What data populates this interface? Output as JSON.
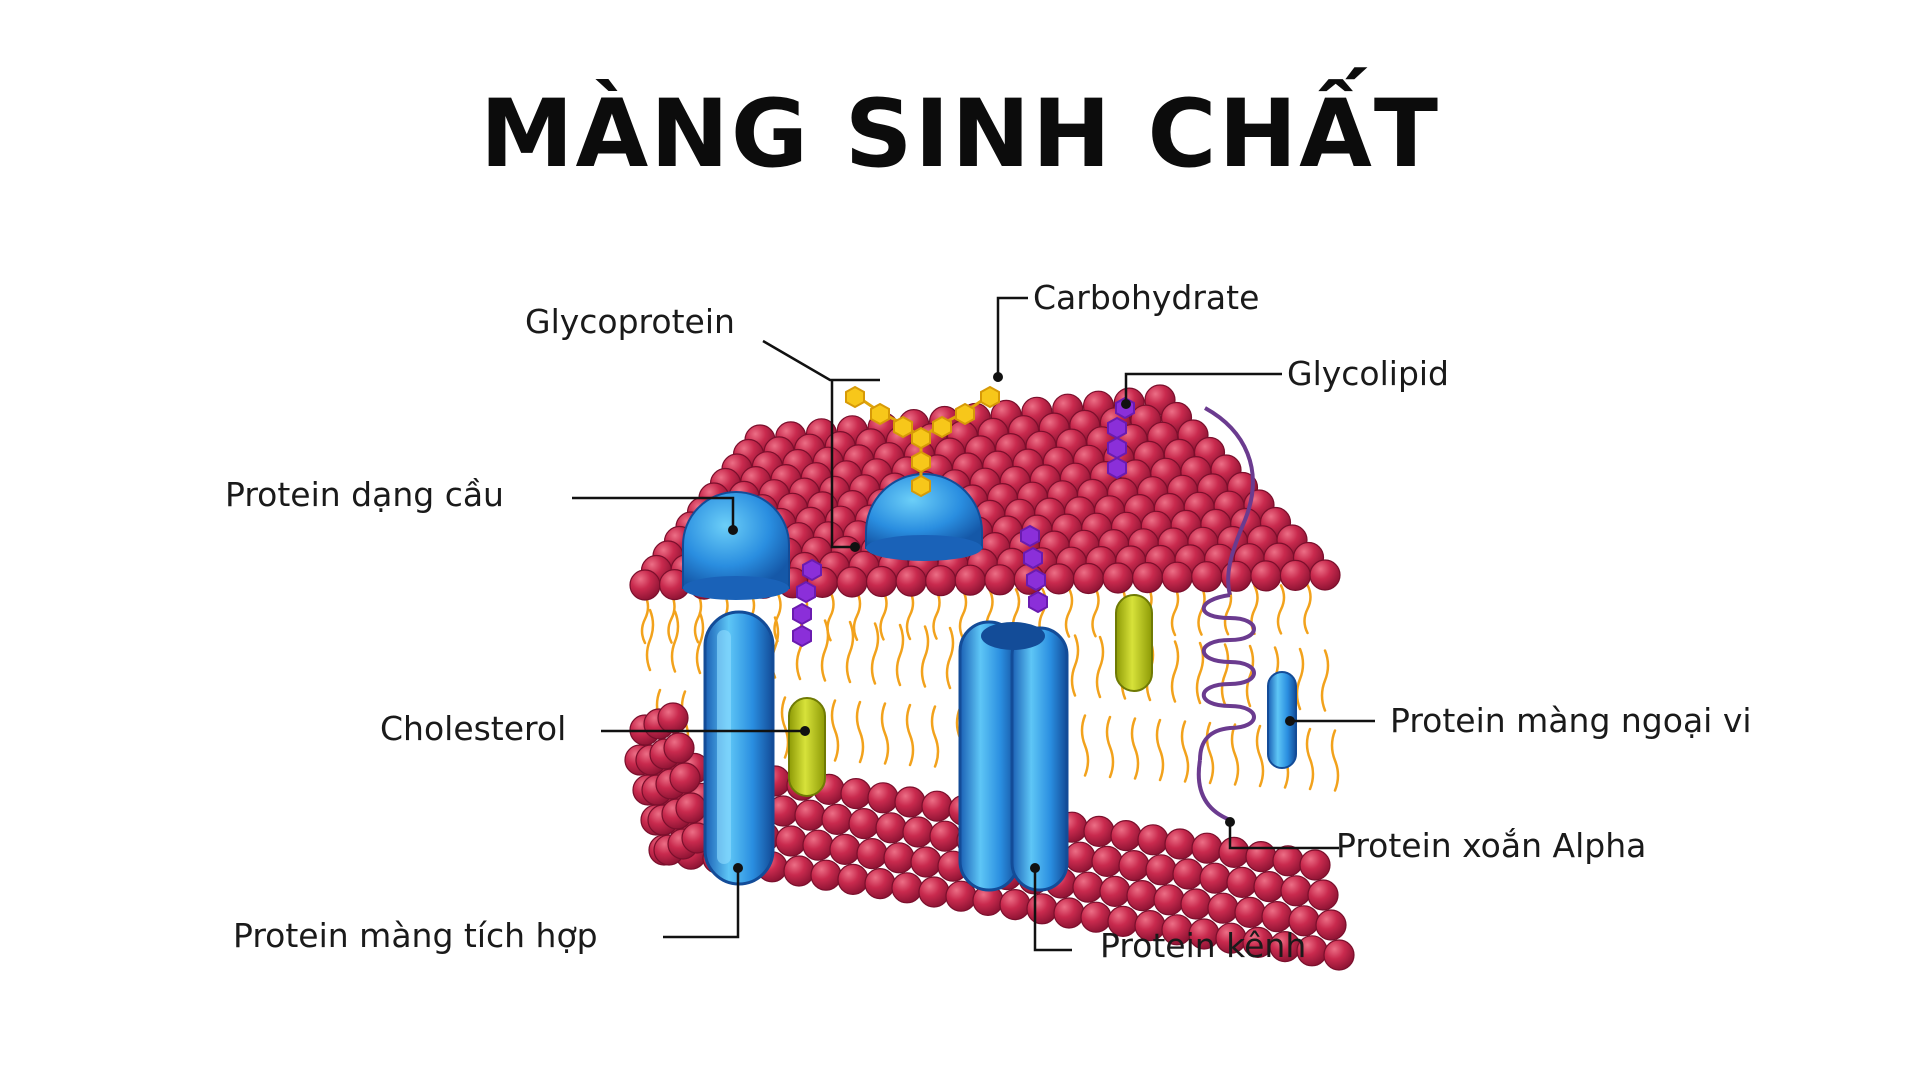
{
  "title": "MÀNG SINH CHẤT",
  "colors": {
    "phospholipid_head": "#c0264a",
    "tail": "#f2a21c",
    "protein": "#2a8ee0",
    "protein_light": "#5ec0f4",
    "protein_dark": "#1558a8",
    "cholesterol": "#b9c90f",
    "carbohydrate": "#f7c71a",
    "glycolipid_chain": "#8b2fd9",
    "alpha_helix": "#6b3b8f",
    "leader_line": "#111111"
  },
  "labels": {
    "carbohydrate": "Carbohydrate",
    "glycoprotein": "Glycoprotein",
    "glycolipid": "Glycolipid",
    "globular_protein": "Protein dạng cầu",
    "cholesterol": "Cholesterol",
    "peripheral_protein": "Protein màng ngoại vi",
    "alpha_helix_protein": "Protein xoắn Alpha",
    "integral_protein": "Protein màng tích hợp",
    "channel_protein": "Protein kênh"
  }
}
